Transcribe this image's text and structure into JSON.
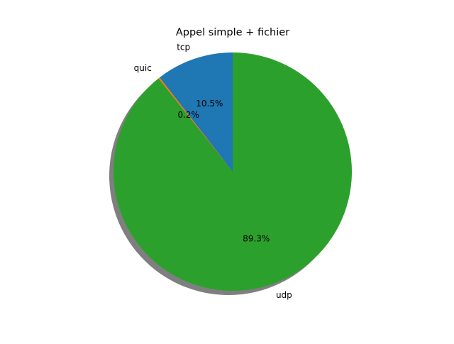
{
  "chart_data": {
    "type": "pie",
    "title": "Appel simple + fichier",
    "labels": [
      "tcp",
      "quic",
      "udp"
    ],
    "values": [
      10.5,
      0.2,
      89.3
    ],
    "percent_labels": [
      "10.5%",
      "0.2%",
      "89.3%"
    ],
    "colors": [
      "#1f77b4",
      "#ff7f0e",
      "#2ca02c"
    ],
    "start_angle": 90,
    "direction": "counterclockwise",
    "shadow": true
  }
}
